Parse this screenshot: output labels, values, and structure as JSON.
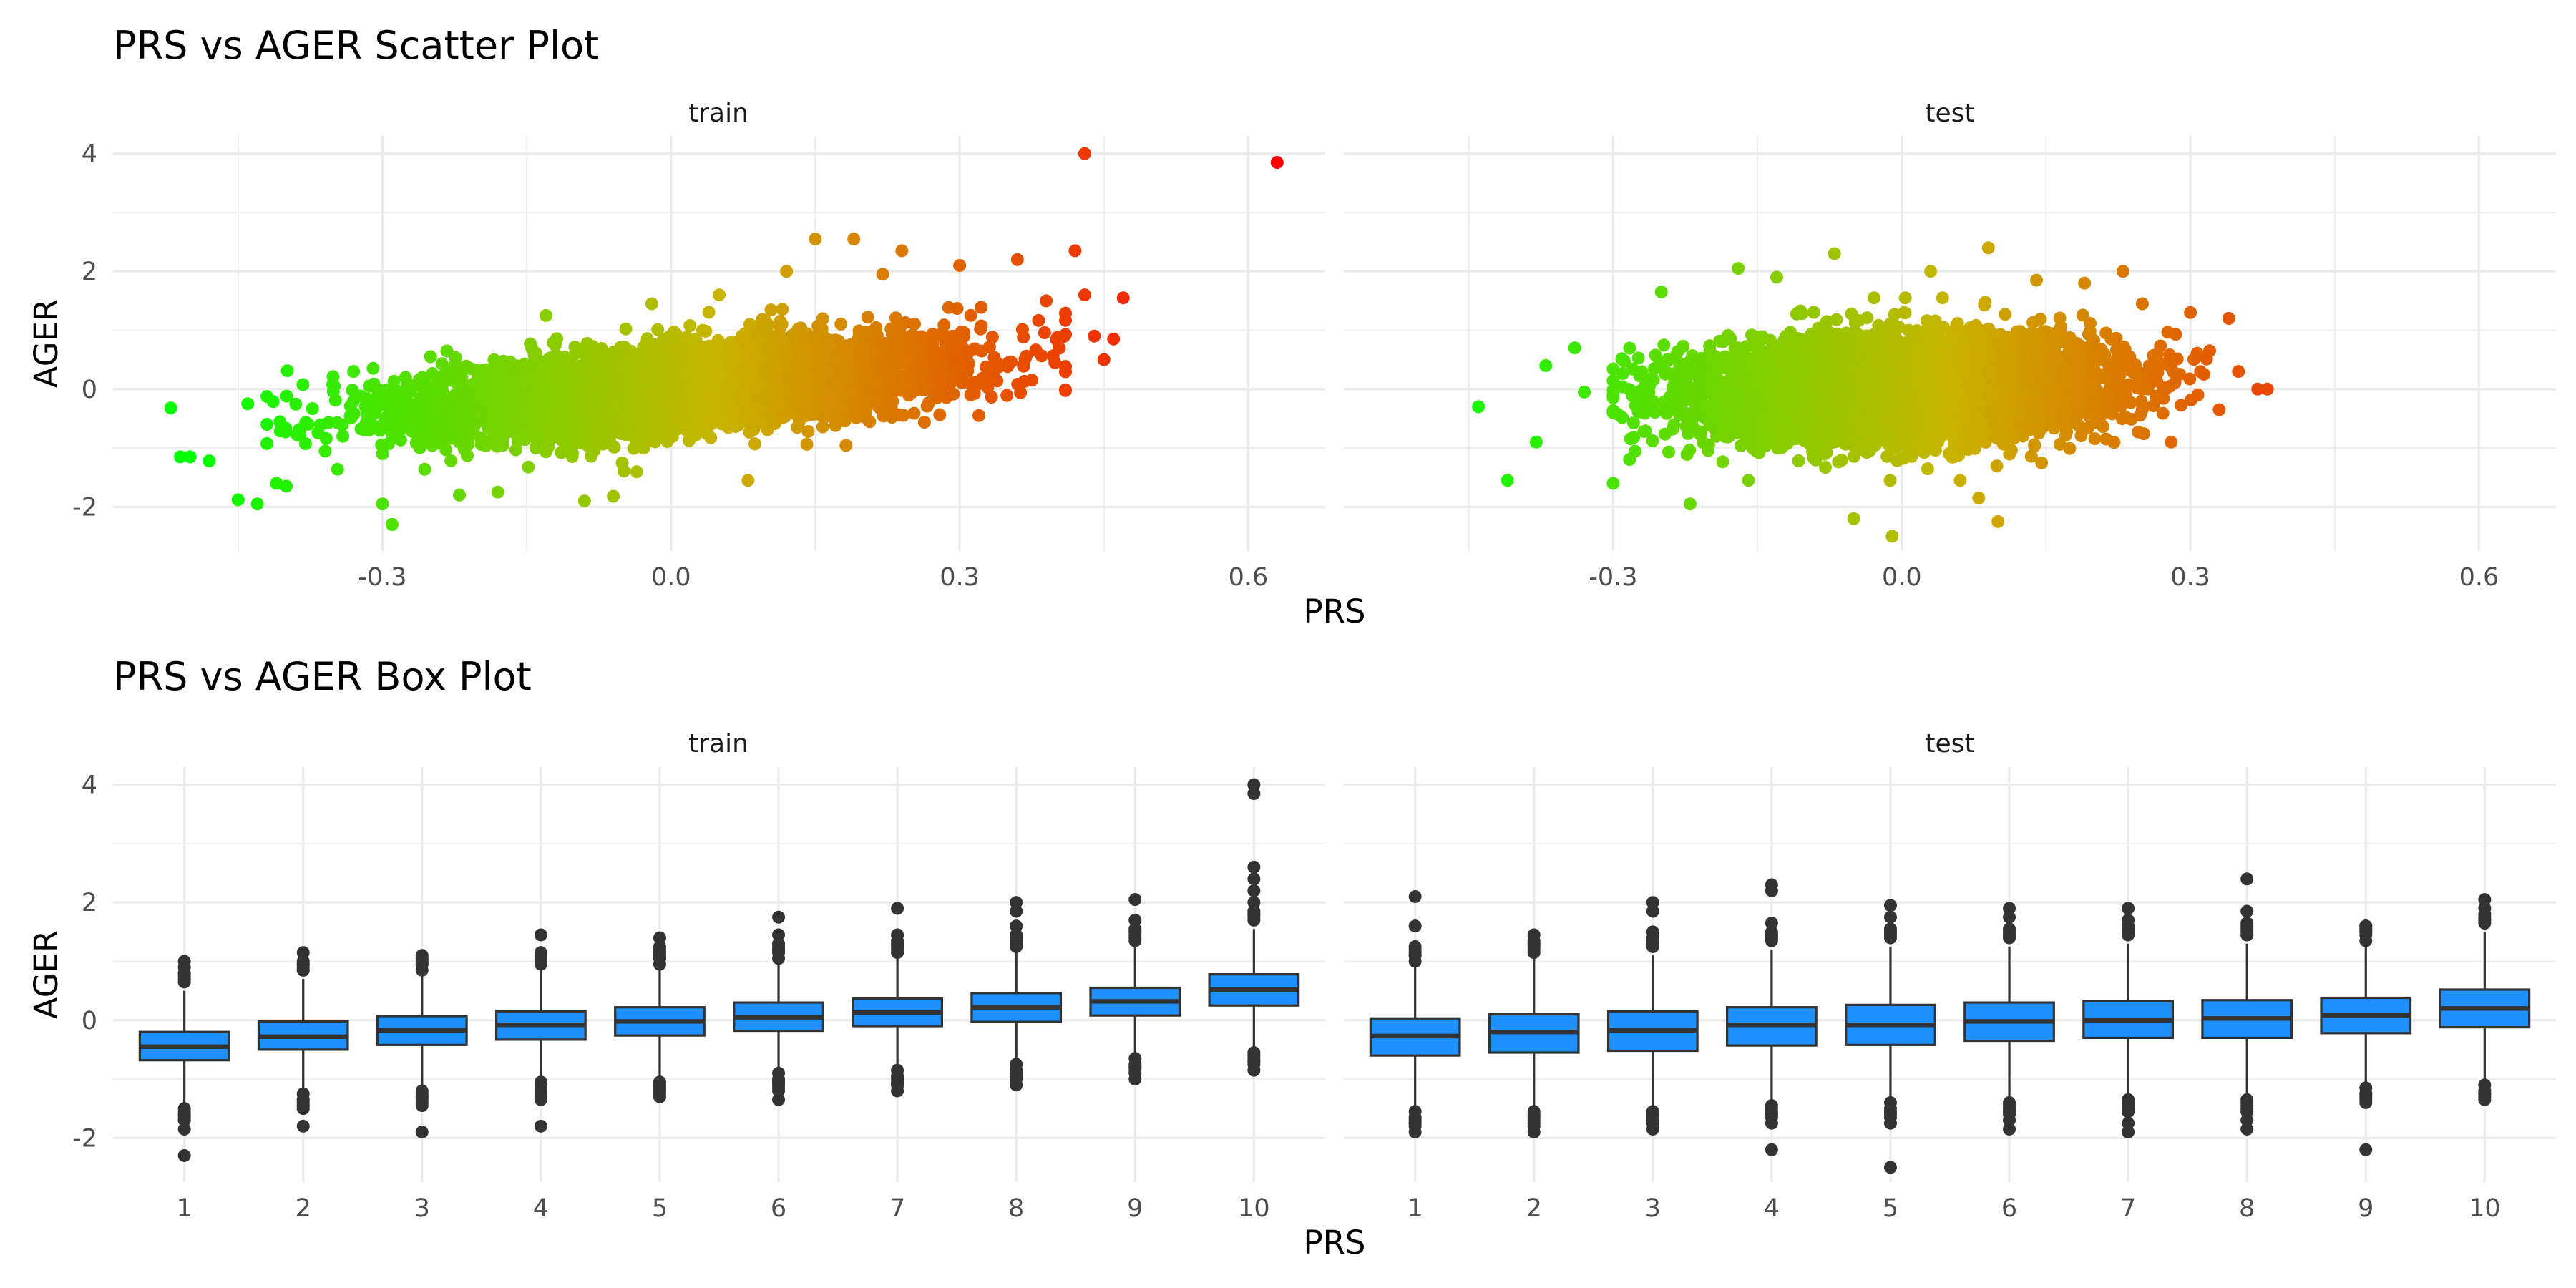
{
  "chart_data": [
    {
      "type": "scatter",
      "title": "PRS vs AGER Scatter Plot",
      "xlabel": "PRS",
      "ylabel": "AGER",
      "facets": [
        "train",
        "test"
      ],
      "xlim": [
        -0.58,
        0.68
      ],
      "ylim": [
        -2.75,
        4.3
      ],
      "x_ticks": [
        -0.3,
        0.0,
        0.3,
        0.6
      ],
      "x_tick_labels": [
        "-0.3",
        "0.0",
        "0.3",
        "0.6"
      ],
      "y_ticks": [
        -2,
        0,
        2,
        4
      ],
      "y_tick_labels": [
        "-2",
        "0",
        "2",
        "4"
      ],
      "grid": true,
      "color_scale": {
        "low": "#00ff00",
        "mid": "#c8b400",
        "high": "#ff0000",
        "domain": [
          -0.5,
          0.6
        ]
      },
      "series": [
        {
          "facet": "train",
          "points": [
            [
              -0.52,
              -0.32
            ],
            [
              -0.51,
              -1.15
            ],
            [
              -0.5,
              -1.15
            ],
            [
              -0.48,
              -1.22
            ],
            [
              -0.45,
              -1.88
            ],
            [
              -0.43,
              -1.95
            ],
            [
              -0.41,
              -1.6
            ],
            [
              -0.4,
              -1.65
            ],
            [
              -0.44,
              -0.25
            ],
            [
              -0.42,
              -0.6
            ],
            [
              -0.35,
              0.05
            ],
            [
              -0.33,
              0.3
            ],
            [
              -0.3,
              -1.95
            ],
            [
              -0.29,
              -2.3
            ],
            [
              -0.25,
              0.55
            ],
            [
              -0.22,
              -1.8
            ],
            [
              -0.18,
              -1.75
            ],
            [
              -0.13,
              1.25
            ],
            [
              -0.09,
              -1.9
            ],
            [
              -0.06,
              -1.82
            ],
            [
              -0.02,
              1.45
            ],
            [
              0.05,
              1.6
            ],
            [
              0.08,
              -1.55
            ],
            [
              0.12,
              2.0
            ],
            [
              0.15,
              2.55
            ],
            [
              0.19,
              2.55
            ],
            [
              0.22,
              1.95
            ],
            [
              0.24,
              2.35
            ],
            [
              0.3,
              2.1
            ],
            [
              0.32,
              -0.45
            ],
            [
              0.36,
              2.2
            ],
            [
              0.39,
              1.5
            ],
            [
              0.42,
              2.35
            ],
            [
              0.43,
              1.6
            ],
            [
              0.43,
              4.0
            ],
            [
              0.44,
              0.9
            ],
            [
              0.45,
              0.5
            ],
            [
              0.46,
              0.85
            ],
            [
              0.47,
              1.55
            ],
            [
              0.63,
              3.85
            ]
          ]
        },
        {
          "facet": "test",
          "points": [
            [
              -0.44,
              -0.3
            ],
            [
              -0.41,
              -1.55
            ],
            [
              -0.38,
              -0.9
            ],
            [
              -0.37,
              0.4
            ],
            [
              -0.34,
              0.7
            ],
            [
              -0.33,
              -0.05
            ],
            [
              -0.3,
              -1.6
            ],
            [
              -0.25,
              1.65
            ],
            [
              -0.22,
              -1.95
            ],
            [
              -0.17,
              2.05
            ],
            [
              -0.13,
              1.9
            ],
            [
              -0.07,
              2.3
            ],
            [
              -0.05,
              -2.2
            ],
            [
              -0.01,
              -2.5
            ],
            [
              0.03,
              2.0
            ],
            [
              0.08,
              -1.85
            ],
            [
              0.09,
              2.4
            ],
            [
              0.1,
              -2.25
            ],
            [
              0.14,
              1.85
            ],
            [
              0.19,
              1.8
            ],
            [
              0.23,
              2.0
            ],
            [
              0.25,
              1.45
            ],
            [
              0.28,
              -0.9
            ],
            [
              0.3,
              1.3
            ],
            [
              0.32,
              0.65
            ],
            [
              0.34,
              1.2
            ],
            [
              0.35,
              0.3
            ],
            [
              0.37,
              0.0
            ],
            [
              0.38,
              0.0
            ],
            [
              0.33,
              -0.35
            ]
          ]
        }
      ]
    },
    {
      "type": "box",
      "title": "PRS vs AGER Box Plot",
      "xlabel": "PRS",
      "ylabel": "AGER",
      "facets": [
        "train",
        "test"
      ],
      "categories": [
        "1",
        "2",
        "3",
        "4",
        "5",
        "6",
        "7",
        "8",
        "9",
        "10"
      ],
      "ylim": [
        -2.75,
        4.3
      ],
      "y_ticks": [
        -2,
        0,
        2,
        4
      ],
      "y_tick_labels": [
        "-2",
        "0",
        "2",
        "4"
      ],
      "grid": true,
      "box_color": "#1e90ff",
      "series": [
        {
          "facet": "train",
          "boxes": [
            {
              "q1": -0.68,
              "median": -0.45,
              "q3": -0.2,
              "lo": -1.4,
              "hi": 0.5,
              "outliers": [
                1.0,
                0.9,
                0.8,
                0.65,
                -1.5,
                -1.6,
                -1.7,
                -1.85,
                -2.3
              ]
            },
            {
              "q1": -0.5,
              "median": -0.28,
              "q3": -0.02,
              "lo": -1.2,
              "hi": 0.7,
              "outliers": [
                1.15,
                0.95,
                0.85,
                -1.25,
                -1.35,
                -1.45,
                -1.8
              ]
            },
            {
              "q1": -0.42,
              "median": -0.17,
              "q3": 0.07,
              "lo": -1.1,
              "hi": 0.8,
              "outliers": [
                1.05,
                0.95,
                0.85,
                -1.2,
                -1.3,
                -1.45,
                -1.9
              ]
            },
            {
              "q1": -0.33,
              "median": -0.08,
              "q3": 0.15,
              "lo": -1.0,
              "hi": 0.85,
              "outliers": [
                1.45,
                1.1,
                0.95,
                -1.05,
                -1.2,
                -1.35,
                -1.8
              ]
            },
            {
              "q1": -0.26,
              "median": -0.02,
              "q3": 0.22,
              "lo": -0.95,
              "hi": 0.9,
              "outliers": [
                1.4,
                1.25,
                1.05,
                0.95,
                -1.05,
                -1.15,
                -1.3
              ]
            },
            {
              "q1": -0.18,
              "median": 0.05,
              "q3": 0.3,
              "lo": -0.85,
              "hi": 1.0,
              "outliers": [
                1.75,
                1.45,
                1.2,
                1.05,
                -0.9,
                -1.05,
                -1.2,
                -1.35
              ]
            },
            {
              "q1": -0.1,
              "median": 0.13,
              "q3": 0.37,
              "lo": -0.8,
              "hi": 1.05,
              "outliers": [
                1.9,
                1.45,
                1.3,
                1.15,
                -0.85,
                -0.95,
                -1.1,
                -1.2
              ]
            },
            {
              "q1": -0.03,
              "median": 0.22,
              "q3": 0.46,
              "lo": -0.7,
              "hi": 1.15,
              "outliers": [
                2.0,
                1.85,
                1.6,
                1.4,
                1.25,
                -0.75,
                -0.9,
                -1.1
              ]
            },
            {
              "q1": 0.08,
              "median": 0.32,
              "q3": 0.55,
              "lo": -0.6,
              "hi": 1.25,
              "outliers": [
                2.05,
                1.7,
                1.5,
                1.35,
                -0.65,
                -0.8,
                -1.0
              ]
            },
            {
              "q1": 0.25,
              "median": 0.52,
              "q3": 0.78,
              "lo": -0.45,
              "hi": 1.55,
              "outliers": [
                4.0,
                3.85,
                2.6,
                2.4,
                2.2,
                2.0,
                1.8,
                -0.55,
                -0.7,
                -0.85
              ]
            }
          ]
        },
        {
          "facet": "test",
          "boxes": [
            {
              "q1": -0.6,
              "median": -0.27,
              "q3": 0.03,
              "lo": -1.5,
              "hi": 0.95,
              "outliers": [
                2.1,
                1.6,
                1.1,
                1.0,
                -1.55,
                -1.75,
                -1.9
              ]
            },
            {
              "q1": -0.55,
              "median": -0.2,
              "q3": 0.1,
              "lo": -1.45,
              "hi": 1.05,
              "outliers": [
                1.45,
                1.3,
                1.15,
                -1.55,
                -1.8,
                -1.9
              ]
            },
            {
              "q1": -0.52,
              "median": -0.17,
              "q3": 0.15,
              "lo": -1.45,
              "hi": 1.1,
              "outliers": [
                2.0,
                1.85,
                1.5,
                1.3,
                -1.55,
                -1.7,
                -1.85
              ]
            },
            {
              "q1": -0.43,
              "median": -0.08,
              "q3": 0.22,
              "lo": -1.35,
              "hi": 1.2,
              "outliers": [
                2.3,
                2.2,
                1.65,
                1.45,
                -1.45,
                -1.6,
                -1.75,
                -2.2
              ]
            },
            {
              "q1": -0.42,
              "median": -0.08,
              "q3": 0.26,
              "lo": -1.35,
              "hi": 1.25,
              "outliers": [
                1.95,
                1.75,
                1.5,
                -1.4,
                -1.55,
                -1.75,
                -2.5
              ]
            },
            {
              "q1": -0.35,
              "median": -0.02,
              "q3": 0.3,
              "lo": -1.3,
              "hi": 1.25,
              "outliers": [
                1.9,
                1.75,
                1.45,
                -1.4,
                -1.55,
                -1.7,
                -1.85
              ]
            },
            {
              "q1": -0.3,
              "median": 0.0,
              "q3": 0.32,
              "lo": -1.25,
              "hi": 1.3,
              "outliers": [
                1.9,
                1.7,
                1.45,
                -1.35,
                -1.55,
                -1.75,
                -1.9
              ]
            },
            {
              "q1": -0.3,
              "median": 0.03,
              "q3": 0.34,
              "lo": -1.25,
              "hi": 1.3,
              "outliers": [
                2.4,
                1.85,
                1.65,
                1.45,
                -1.35,
                -1.55,
                -1.7,
                -1.85
              ]
            },
            {
              "q1": -0.22,
              "median": 0.08,
              "q3": 0.38,
              "lo": -1.1,
              "hi": 1.3,
              "outliers": [
                1.6,
                1.5,
                1.35,
                -1.15,
                -1.25,
                -2.2
              ]
            },
            {
              "q1": -0.12,
              "median": 0.2,
              "q3": 0.52,
              "lo": -1.05,
              "hi": 1.5,
              "outliers": [
                2.05,
                1.9,
                1.7,
                -1.1,
                -1.25
              ]
            }
          ]
        }
      ]
    }
  ]
}
